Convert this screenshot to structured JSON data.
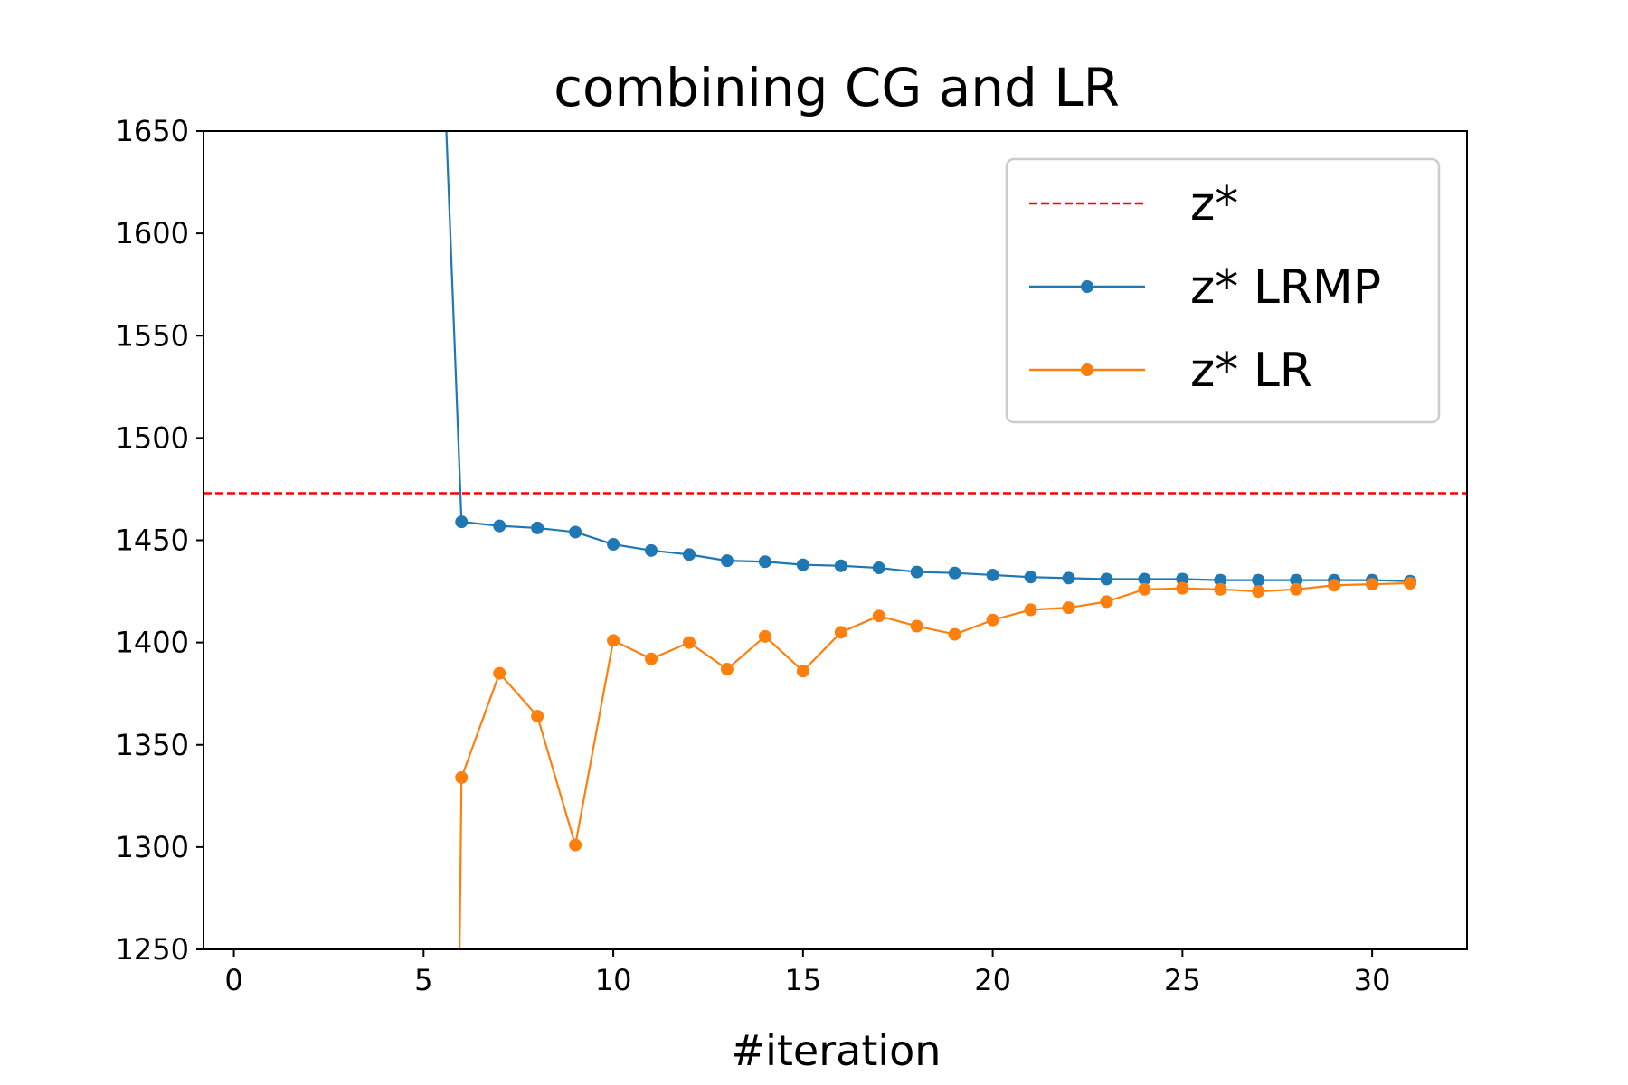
{
  "chart_data": {
    "type": "line",
    "title": "combining CG and LR",
    "xlabel": "#iteration",
    "ylabel": "",
    "xlim": [
      -0.8,
      32.5
    ],
    "ylim": [
      1250,
      1650
    ],
    "xticks": [
      0,
      5,
      10,
      15,
      20,
      25,
      30
    ],
    "yticks": [
      1250,
      1300,
      1350,
      1400,
      1450,
      1500,
      1550,
      1600,
      1650
    ],
    "grid": false,
    "legend_position": "top-right",
    "hlines": [
      {
        "name": "z*",
        "y": 1473,
        "color": "#ff0000",
        "style": "dashed"
      }
    ],
    "series": [
      {
        "name": "z* LRMP",
        "color": "#1f77b4",
        "marker": "circle",
        "x": [
          5.6,
          6,
          7,
          8,
          9,
          10,
          11,
          12,
          13,
          14,
          15,
          16,
          17,
          18,
          19,
          20,
          21,
          22,
          23,
          24,
          25,
          26,
          27,
          28,
          29,
          30,
          31
        ],
        "y": [
          1650,
          1459,
          1457,
          1456,
          1454,
          1448,
          1445,
          1443,
          1440,
          1439.5,
          1438,
          1437.5,
          1436.5,
          1434.5,
          1434,
          1433,
          1432,
          1431.5,
          1431,
          1431,
          1431,
          1430.5,
          1430.5,
          1430.5,
          1430.5,
          1430.5,
          1430
        ],
        "marked_from_index": 1
      },
      {
        "name": "z* LR",
        "color": "#ff7f0e",
        "marker": "circle",
        "x": [
          5.95,
          6,
          7,
          8,
          9,
          10,
          11,
          12,
          13,
          14,
          15,
          16,
          17,
          18,
          19,
          20,
          21,
          22,
          23,
          24,
          25,
          26,
          27,
          28,
          29,
          30,
          31
        ],
        "y": [
          1250,
          1334,
          1385,
          1364,
          1301,
          1401,
          1392,
          1400,
          1387,
          1403,
          1386,
          1405,
          1413,
          1408,
          1404,
          1411,
          1416,
          1417,
          1420,
          1426,
          1426.5,
          1426,
          1425,
          1426,
          1428,
          1428.5,
          1429
        ],
        "marked_from_index": 1
      }
    ]
  }
}
